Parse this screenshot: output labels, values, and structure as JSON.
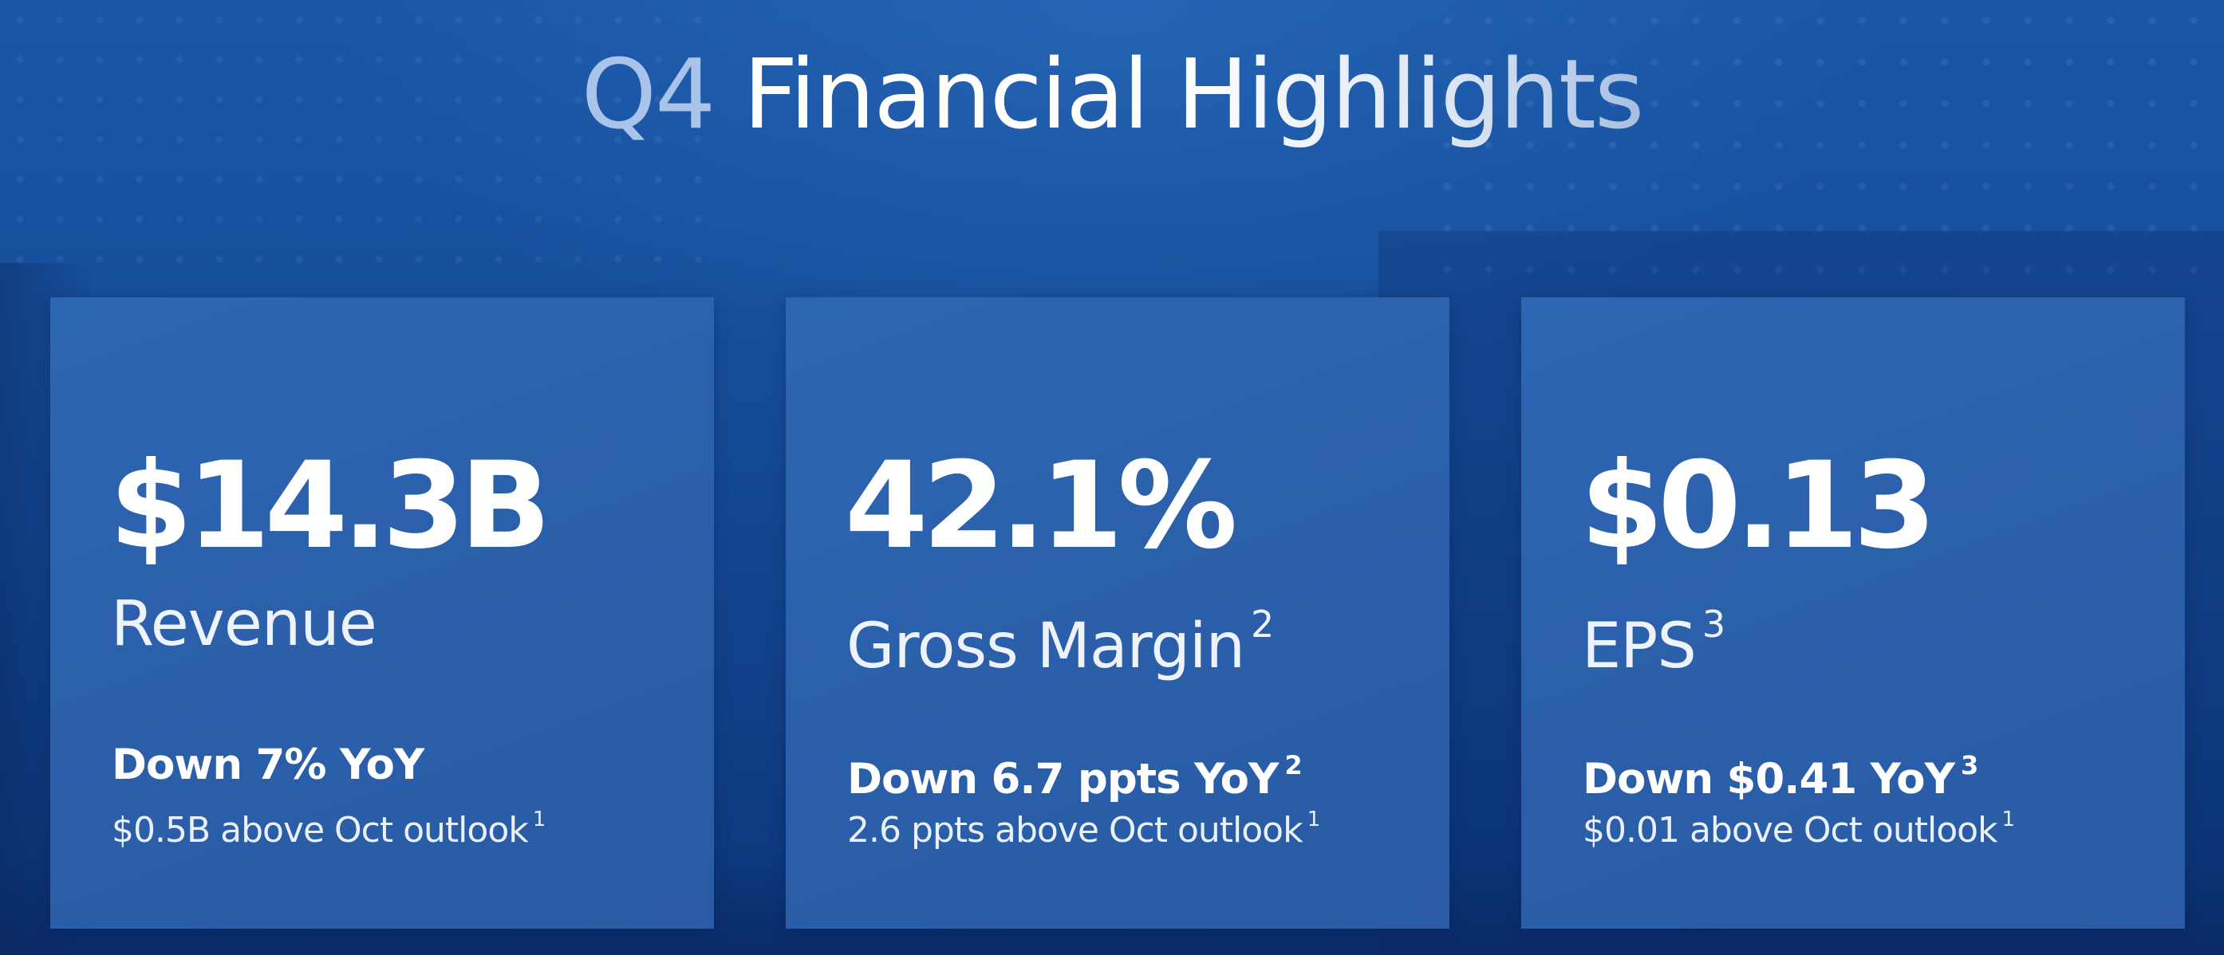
{
  "title": {
    "prefix": "Q4",
    "word1": "Financial",
    "word2": "Highlights"
  },
  "cards": [
    {
      "value": "$14.3B",
      "label": "Revenue",
      "label_footnote": "",
      "change": "Down 7% YoY",
      "change_footnote": "",
      "outlook": "$0.5B above Oct outlook",
      "outlook_footnote": "1"
    },
    {
      "value": "42.1%",
      "label": "Gross Margin",
      "label_footnote": "2",
      "change": "Down 6.7 ppts YoY",
      "change_footnote": "2",
      "outlook": "2.6 ppts above Oct outlook",
      "outlook_footnote": "1"
    },
    {
      "value": "$0.13",
      "label": "EPS",
      "label_footnote": "3",
      "change": "Down $0.41 YoY",
      "change_footnote": "3",
      "outlook": "$0.01 above Oct outlook",
      "outlook_footnote": "1"
    }
  ],
  "colors": {
    "background": "#154c98",
    "card": "#2b5faa",
    "text": "#ffffff",
    "title_accent": "#a9c4e8"
  }
}
